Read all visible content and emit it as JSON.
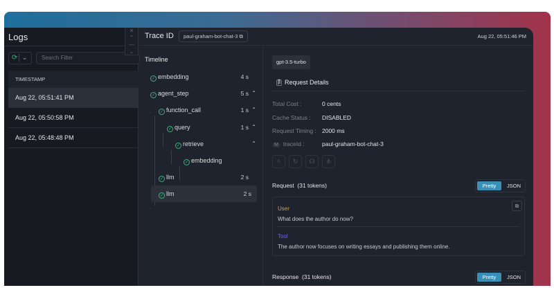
{
  "logs": {
    "title": "Logs",
    "search_placeholder": "Search Filter",
    "column": "TIMESTAMP",
    "rows": [
      "Aug 22, 05:51:41 PM",
      "Aug 22, 05:50:58 PM",
      "Aug 22, 05:48:48 PM"
    ]
  },
  "header": {
    "trace_label": "Trace ID",
    "trace_id": "paul-graham-bot-chat-3",
    "timestamp": "Aug 22, 05:51:46 PM"
  },
  "timeline": {
    "title": "Timeline",
    "items": [
      {
        "name": "embedding",
        "duration": "4 s"
      },
      {
        "name": "agent_step",
        "duration": "5 s"
      },
      {
        "name": "function_call",
        "duration": "1 s"
      },
      {
        "name": "query",
        "duration": "1 s"
      },
      {
        "name": "retrieve",
        "duration": ""
      },
      {
        "name": "embedding",
        "duration": ""
      },
      {
        "name": "llm",
        "duration": "2 s"
      },
      {
        "name": "llm",
        "duration": "2 s"
      }
    ]
  },
  "details": {
    "model": "gpt-3.5-turbo",
    "section_title": "Request Details",
    "fields": [
      {
        "k": "Total Cost :",
        "v": "0 cents"
      },
      {
        "k": "Cache Status :",
        "v": "DISABLED"
      },
      {
        "k": "Request Timing :",
        "v": "2000 ms"
      },
      {
        "badge": "M",
        "k": "traceId :",
        "v": "paul-graham-bot-chat-3"
      }
    ],
    "request": {
      "title": "Request",
      "tokens": "(31 tokens)",
      "pretty": "Pretty",
      "json": "JSON",
      "messages": [
        {
          "role": "User",
          "text": "What does the author do now?",
          "color": "#d4a13a"
        },
        {
          "role": "Tool",
          "text": "The author now focuses on writing essays and publishing them online.",
          "color": "#6b63e0"
        }
      ]
    },
    "response": {
      "title": "Response",
      "tokens": "(31 tokens)",
      "pretty": "Pretty",
      "json": "JSON"
    }
  },
  "colors": {
    "accent": "#3a8fb7",
    "success": "#3fb27f"
  }
}
